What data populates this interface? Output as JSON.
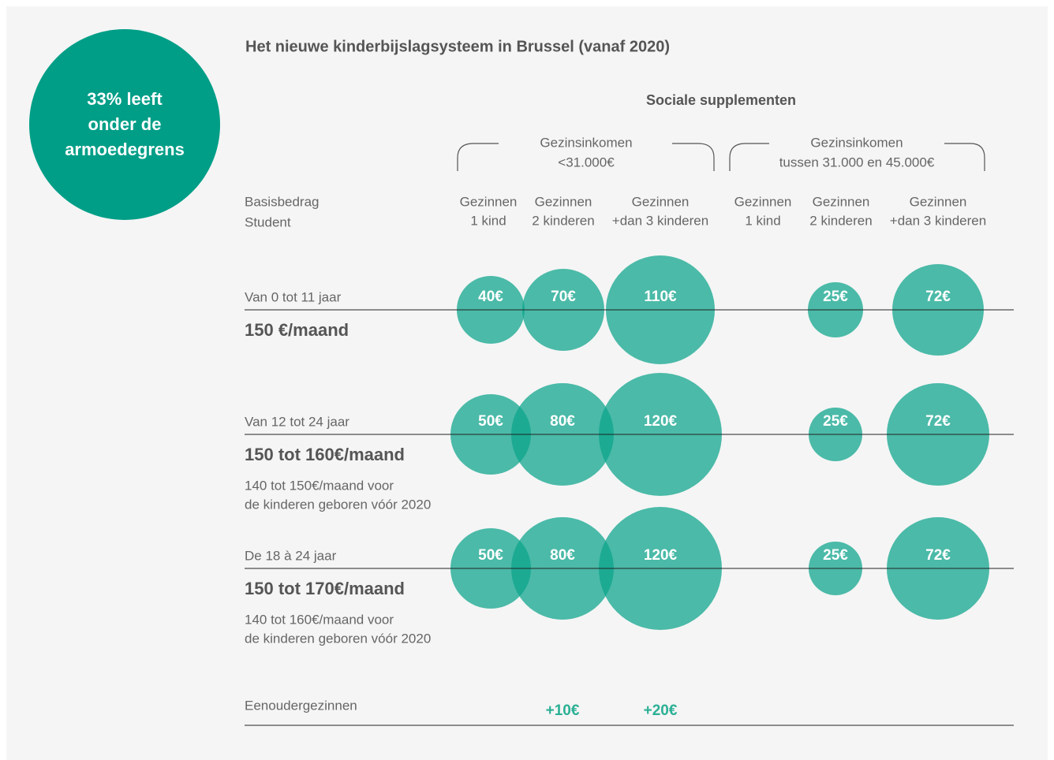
{
  "callout": [
    "33% leeft",
    "onder de",
    "armoedegrens"
  ],
  "title": "Het nieuwe kinderbijslagsysteem in Brussel (vanaf 2020)",
  "subtitle": "Sociale supplementen",
  "groups": [
    [
      "Gezinsinkomen",
      "<31.000€"
    ],
    [
      "Gezinsinkomen",
      "tussen 31.000 en 45.000€"
    ]
  ],
  "basis_header": [
    "Basisbedrag",
    "Student"
  ],
  "columns": [
    [
      "Gezinnen",
      "1 kind"
    ],
    [
      "Gezinnen",
      "2 kinderen"
    ],
    [
      "Gezinnen",
      "+dan 3 kinderen"
    ],
    [
      "Gezinnen",
      "1 kind"
    ],
    [
      "Gezinnen",
      "2 kinderen"
    ],
    [
      "Gezinnen",
      "+dan 3 kinderen"
    ]
  ],
  "rows": [
    {
      "age": "Van 0 tot 11 jaar",
      "amount": "150 €/maand",
      "note": [],
      "bubbles": [
        "40€",
        "70€",
        "110€",
        "25€",
        "72€"
      ]
    },
    {
      "age": "Van 12 tot 24 jaar",
      "amount": "150 tot 160€/maand",
      "note": [
        "140 tot 150€/maand voor",
        "de kinderen geboren vóór 2020"
      ],
      "bubbles": [
        "50€",
        "80€",
        "120€",
        "25€",
        "72€"
      ]
    },
    {
      "age": "De 18 à 24 jaar",
      "amount": "150 tot 170€/maand",
      "note": [
        "140 tot 160€/maand voor",
        "de kinderen geboren vóór 2020"
      ],
      "bubbles": [
        "50€",
        "80€",
        "120€",
        "25€",
        "72€"
      ]
    }
  ],
  "single_parent": {
    "label": "Eenoudergezinnen",
    "extras": [
      "+10€",
      "+20€"
    ]
  }
}
